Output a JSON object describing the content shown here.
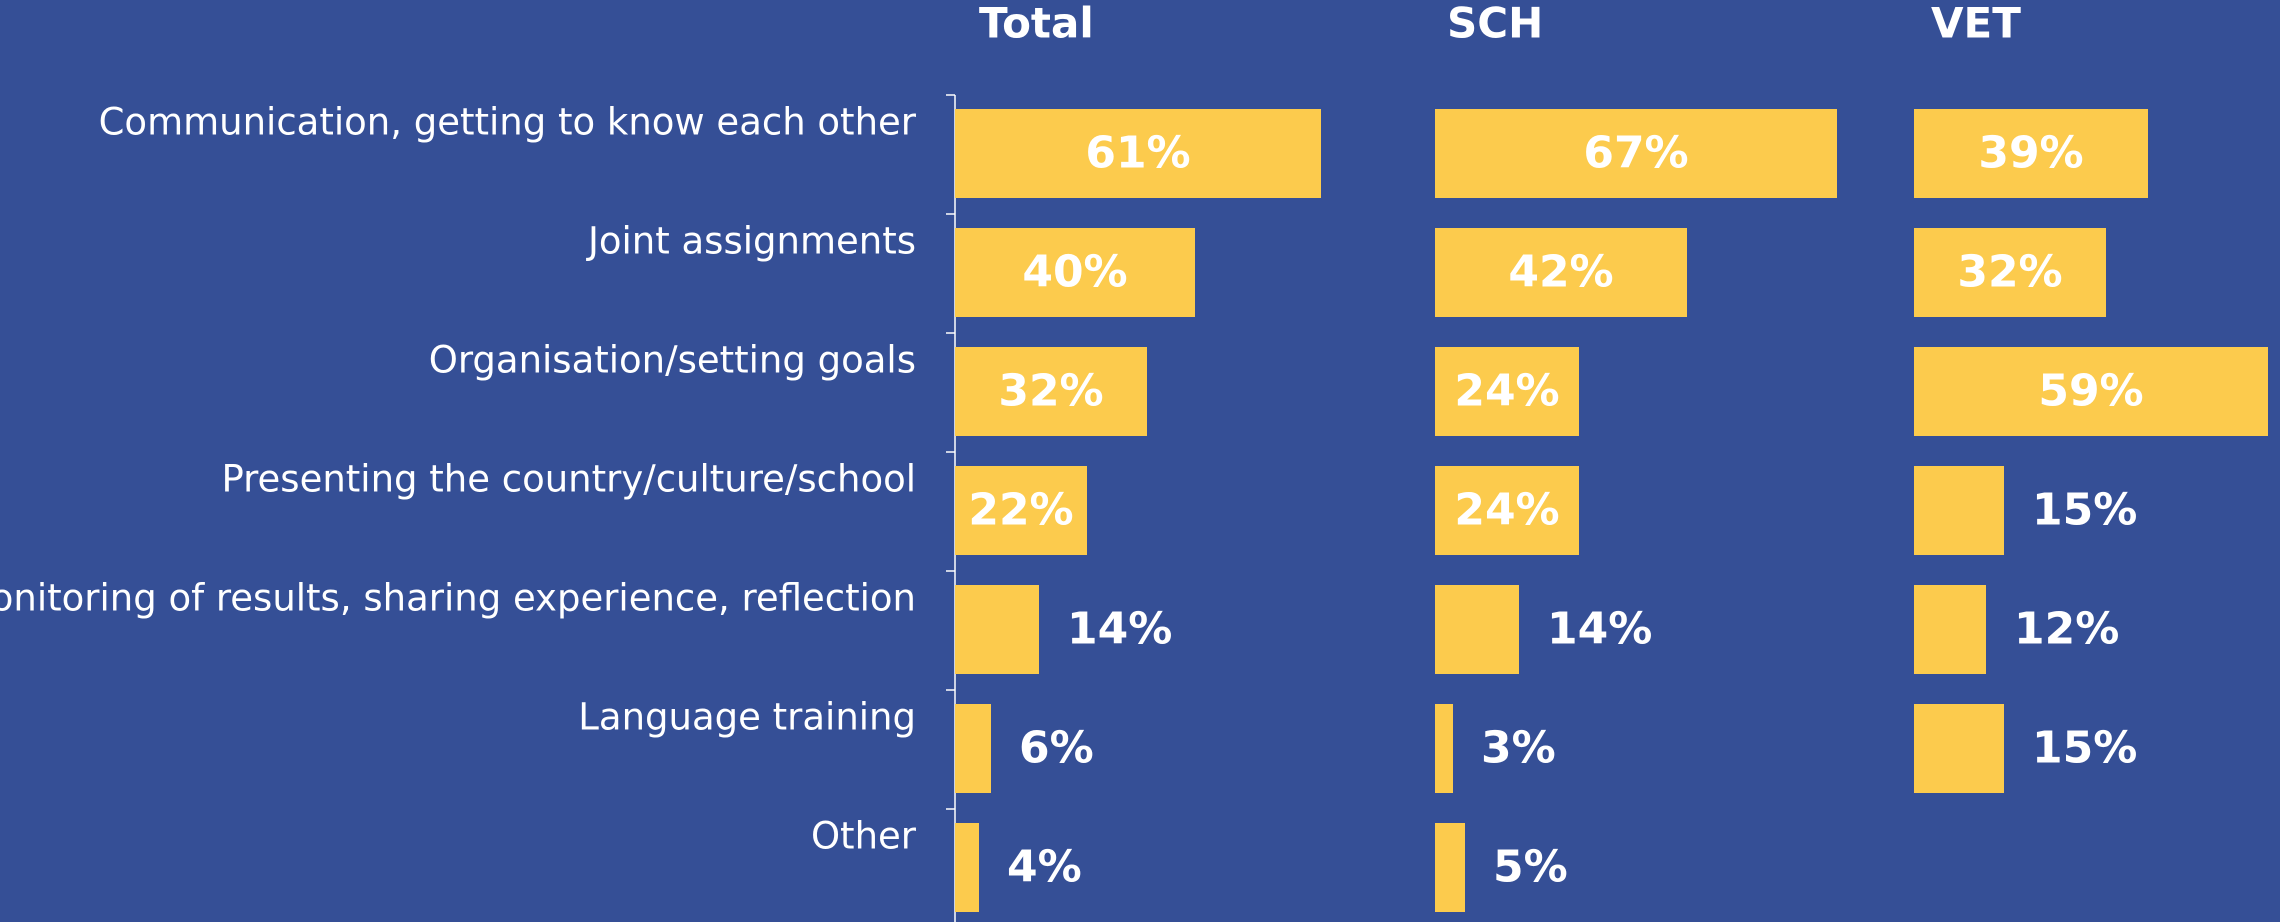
{
  "chart_data": {
    "type": "bar",
    "orientation": "horizontal",
    "categories": [
      "Communication, getting to know each other",
      "Joint assignments",
      "Organisation/setting goals",
      "Presenting the country/culture/school",
      "Monitoring of results, sharing experience, reflection",
      "Language training",
      "Other"
    ],
    "series": [
      {
        "name": "Total",
        "color": "#fccb4d",
        "values": [
          61,
          40,
          32,
          22,
          14,
          6,
          4
        ],
        "value_labels": [
          "61%",
          "40%",
          "32%",
          "22%",
          "14%",
          "6%",
          "4%"
        ]
      },
      {
        "name": "SCH",
        "color": "#fccb4d",
        "values": [
          67,
          42,
          24,
          24,
          14,
          3,
          5
        ],
        "value_labels": [
          "67%",
          "42%",
          "24%",
          "24%",
          "14%",
          "3%",
          "5%"
        ]
      },
      {
        "name": "VET",
        "color": "#fccb4d",
        "values": [
          39,
          32,
          59,
          15,
          12,
          15,
          null
        ],
        "value_labels": [
          "39%",
          "32%",
          "59%",
          "15%",
          "12%",
          "15%",
          null
        ]
      }
    ]
  }
}
